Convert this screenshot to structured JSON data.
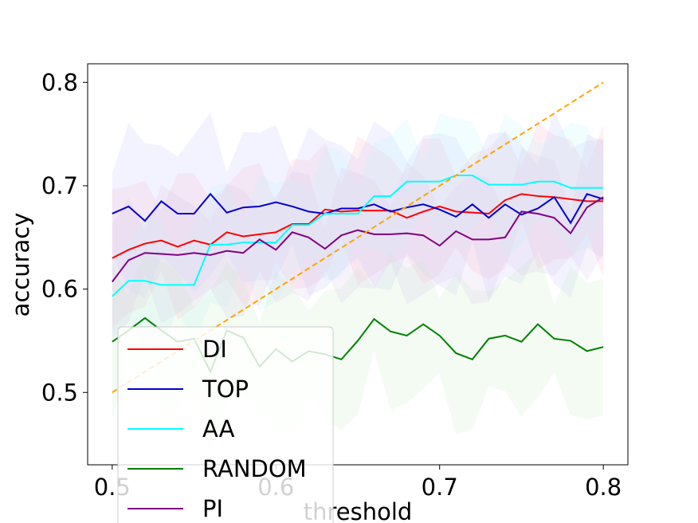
{
  "chart_data": {
    "type": "line",
    "title": "",
    "xlabel": "threshold",
    "ylabel": "accuracy",
    "xlim": [
      0.485,
      0.815
    ],
    "ylim": [
      0.43,
      0.818
    ],
    "xticks": [
      0.5,
      0.6,
      0.7,
      0.8
    ],
    "xtick_labels": [
      "0.5",
      "0.6",
      "0.7",
      "0.8"
    ],
    "yticks": [
      0.5,
      0.6,
      0.7,
      0.8
    ],
    "ytick_labels": [
      "0.5",
      "0.6",
      "0.7",
      "0.8"
    ],
    "grid": false,
    "legend_position": "lower-left",
    "x": [
      0.5,
      0.51,
      0.52,
      0.53,
      0.54,
      0.55,
      0.56,
      0.57,
      0.58,
      0.59,
      0.6,
      0.61,
      0.62,
      0.63,
      0.64,
      0.65,
      0.66,
      0.67,
      0.68,
      0.69,
      0.7,
      0.71,
      0.72,
      0.73,
      0.74,
      0.75,
      0.76,
      0.77,
      0.78,
      0.79,
      0.8
    ],
    "series": [
      {
        "name": "DI",
        "color": "#ff0000",
        "band_color": "#ffb6c8",
        "values": [
          0.63,
          0.638,
          0.644,
          0.647,
          0.641,
          0.647,
          0.643,
          0.655,
          0.651,
          0.653,
          0.655,
          0.663,
          0.663,
          0.677,
          0.675,
          0.676,
          0.676,
          0.676,
          0.669,
          0.675,
          0.68,
          0.675,
          0.674,
          0.673,
          0.686,
          0.692,
          0.69,
          0.689,
          0.687,
          0.685,
          0.685
        ],
        "band_halfwidth": 0.055
      },
      {
        "name": "TOP",
        "color": "#0000cc",
        "band_color": "#c8c8ff",
        "values": [
          0.673,
          0.68,
          0.666,
          0.685,
          0.673,
          0.673,
          0.692,
          0.674,
          0.679,
          0.68,
          0.684,
          0.68,
          0.675,
          0.673,
          0.678,
          0.678,
          0.682,
          0.675,
          0.679,
          0.682,
          0.677,
          0.67,
          0.682,
          0.669,
          0.682,
          0.672,
          0.678,
          0.689,
          0.664,
          0.692,
          0.687
        ],
        "band_halfwidth": 0.065
      },
      {
        "name": "AA",
        "color": "#00ffff",
        "band_color": "#c0f4ff",
        "values": [
          0.593,
          0.608,
          0.608,
          0.604,
          0.604,
          0.604,
          0.643,
          0.643,
          0.645,
          0.645,
          0.645,
          0.662,
          0.662,
          0.673,
          0.673,
          0.673,
          0.69,
          0.69,
          0.704,
          0.704,
          0.704,
          0.71,
          0.71,
          0.701,
          0.701,
          0.701,
          0.704,
          0.704,
          0.698,
          0.698,
          0.698
        ],
        "band_halfwidth": 0.05
      },
      {
        "name": "RANDOM",
        "color": "#008000",
        "band_color": "#c8ecc8",
        "values": [
          0.549,
          0.56,
          0.572,
          0.56,
          0.549,
          0.552,
          0.52,
          0.56,
          0.553,
          0.525,
          0.542,
          0.53,
          0.54,
          0.537,
          0.532,
          0.55,
          0.571,
          0.559,
          0.555,
          0.566,
          0.555,
          0.538,
          0.532,
          0.552,
          0.555,
          0.549,
          0.566,
          0.552,
          0.55,
          0.54,
          0.544
        ],
        "band_halfwidth": 0.06
      },
      {
        "name": "PI",
        "color": "#800080",
        "band_color": "#dcc8e6",
        "values": [
          0.607,
          0.628,
          0.635,
          0.634,
          0.633,
          0.635,
          0.633,
          0.637,
          0.635,
          0.648,
          0.638,
          0.655,
          0.65,
          0.639,
          0.652,
          0.657,
          0.653,
          0.653,
          0.654,
          0.652,
          0.642,
          0.656,
          0.648,
          0.648,
          0.65,
          0.675,
          0.673,
          0.669,
          0.654,
          0.679,
          0.689
        ],
        "band_halfwidth": 0.05
      }
    ],
    "reference_line": {
      "color": "#ffa500",
      "style": "dashed",
      "x": [
        0.5,
        0.8
      ],
      "y": [
        0.5,
        0.8
      ]
    }
  }
}
